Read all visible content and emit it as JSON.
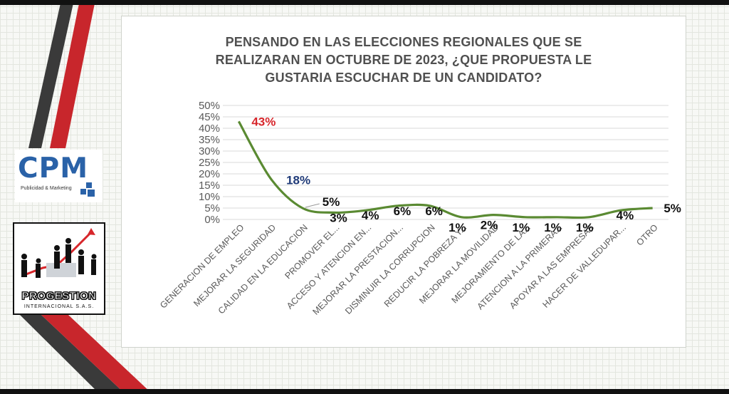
{
  "logos": {
    "cpm_name": "CPM",
    "cpm_tagline": "Publicidad & Marketing",
    "progestion_name": "PROGESTION",
    "progestion_sub": "INTERNACIONAL S.A.S."
  },
  "colors": {
    "line": "#5a8a32",
    "accent_red": "#d7262b",
    "label_blue": "#1f3a78",
    "label_dark": "#111111",
    "axis_text": "#595959",
    "gridline": "#d9d9d9"
  },
  "chart_data": {
    "type": "line",
    "title_lines": [
      "PENSANDO EN LAS ELECCIONES REGIONALES QUE SE",
      "REALIZARAN EN OCTUBRE  DE 2023, ¿QUE PROPUESTA LE",
      "GUSTARIA ESCUCHAR DE UN CANDIDATO?"
    ],
    "categories": [
      "GENERACION DE EMPLEO",
      "MEJORAR LA SEGURIDAD",
      "CALIDAD EN LA EDUCACION",
      "PROMOVER EL...",
      "ACCESO Y ATENCION EN...",
      "MEJORAR LA PRESTACION...",
      "DISMINUIR LA CORRUPCION",
      "REDUCIR LA POBREZA Y...",
      "MEJORAR LA MOVILIDAD",
      "MEJORAMIENTO DE LA...",
      "ATENCION A LA PRIMERA...",
      "APOYAR A LAS EMPRESAS",
      "HACER DE VALLEDUPAR...",
      "OTRO"
    ],
    "values": [
      43,
      18,
      5,
      3,
      4,
      6,
      6,
      1,
      2,
      1,
      1,
      1,
      4,
      5
    ],
    "data_labels": [
      "43%",
      "18%",
      "5%",
      "3%",
      "4%",
      "6%",
      "6%",
      "1%",
      "2%",
      "1%",
      "1%",
      "1%",
      "4%",
      "5%"
    ],
    "y_ticks": [
      "0%",
      "5%",
      "10%",
      "15%",
      "20%",
      "25%",
      "30%",
      "35%",
      "40%",
      "45%",
      "50%"
    ],
    "ylim": [
      0,
      50
    ],
    "grid": true,
    "legend": "none"
  }
}
